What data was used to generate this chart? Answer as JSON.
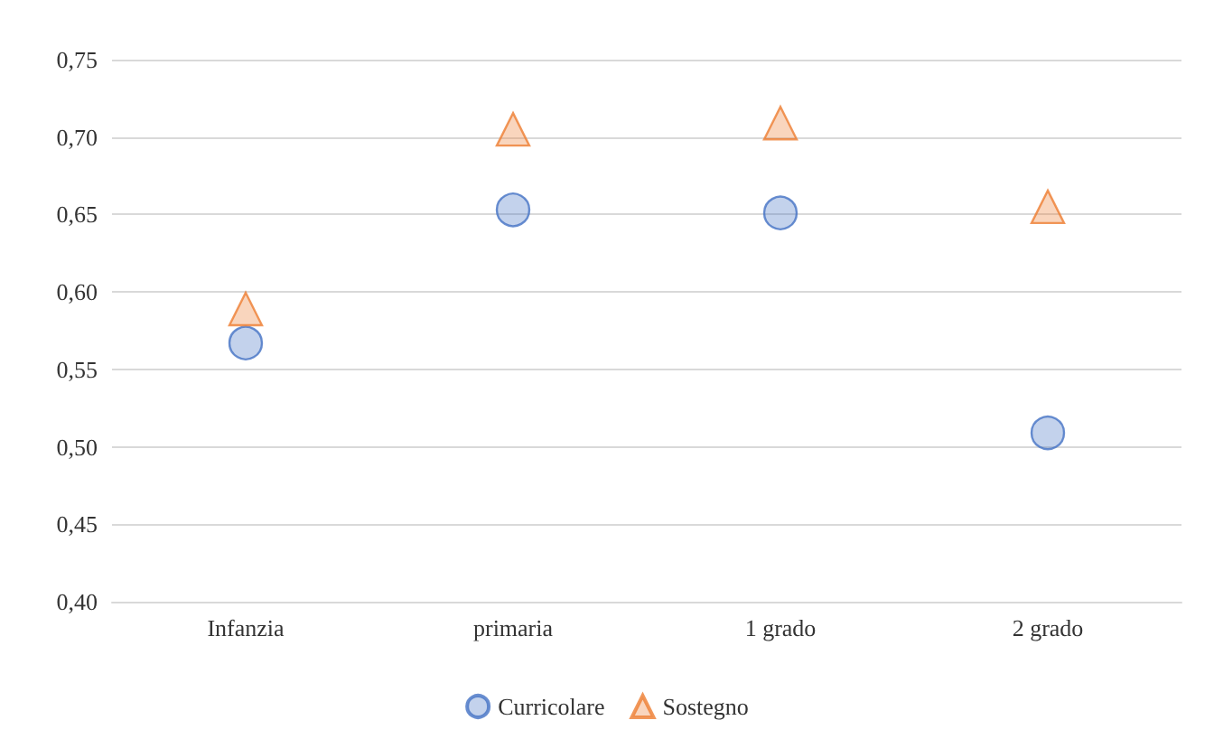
{
  "chart_data": {
    "type": "scatter",
    "categories": [
      "Infanzia",
      "primaria",
      "1 grado",
      "2 grado"
    ],
    "series": [
      {
        "name": "Curricolare",
        "color": "#4472c4",
        "marker": "circle",
        "values": [
          0.567,
          0.653,
          0.651,
          0.509
        ]
      },
      {
        "name": "Sostegno",
        "color": "#ed7d31",
        "marker": "triangle",
        "values": [
          0.589,
          0.705,
          0.709,
          0.655
        ]
      }
    ],
    "ylim": [
      0.4,
      0.75
    ],
    "yticks": [
      {
        "value": 0.4,
        "label": "0,40"
      },
      {
        "value": 0.45,
        "label": "0,45"
      },
      {
        "value": 0.5,
        "label": "0,50"
      },
      {
        "value": 0.55,
        "label": "0,55"
      },
      {
        "value": 0.6,
        "label": "0,60"
      },
      {
        "value": 0.65,
        "label": "0,65"
      },
      {
        "value": 0.7,
        "label": "0,70"
      },
      {
        "value": 0.75,
        "label": "0,75"
      }
    ],
    "grid": "y",
    "legend": "bottom"
  }
}
